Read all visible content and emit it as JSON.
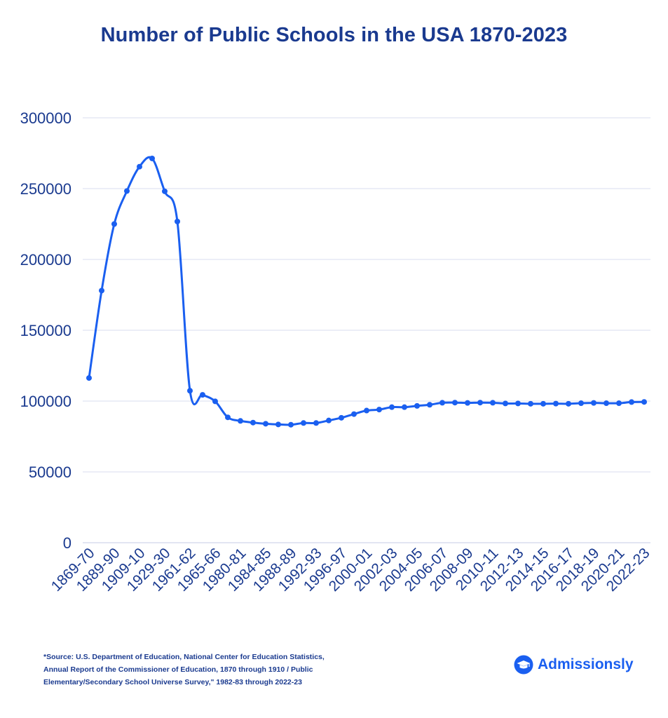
{
  "title": "Number of Public Schools in the USA 1870-2023",
  "source_lines": [
    "*Source:  U.S. Department of Education, National Center for Education Statistics,",
    "Annual Report of the Commissioner of Education, 1870 through 1910 / Public",
    "Elementary/Secondary School Universe Survey,\" 1982-83 through 2022-23"
  ],
  "brand": {
    "name": "Admissionsly",
    "icon": "graduation-cap-icon",
    "color": "#1a5ff0"
  },
  "colors": {
    "title": "#1a3a8f",
    "line": "#1a5ff0",
    "grid": "#d8dcef",
    "axis_text": "#1a3a8f"
  },
  "chart_data": {
    "type": "line",
    "title": "Number of Public Schools in the USA 1870-2023",
    "xlabel": "",
    "ylabel": "",
    "ylim": [
      0,
      300000
    ],
    "yticks": [
      0,
      50000,
      100000,
      150000,
      200000,
      250000,
      300000
    ],
    "grid": true,
    "legend": "none",
    "x_tick_labels": [
      "1869-70",
      "1889-90",
      "1909-10",
      "1929-30",
      "1961-62",
      "1965-66",
      "1980-81",
      "1984-85",
      "1988-89",
      "1992-93",
      "1996-97",
      "2000-01",
      "2002-03",
      "2004-05",
      "2006-07",
      "2008-09",
      "2010-11",
      "2012-13",
      "2014-15",
      "2016-17",
      "2018-19",
      "2020-21",
      "2022-23"
    ],
    "values": [
      116300,
      178000,
      225000,
      248300,
      265500,
      271300,
      248100,
      226800,
      107300,
      104400,
      99800,
      88500,
      86000,
      84800,
      84000,
      83500,
      83300,
      84500,
      84500,
      86300,
      88200,
      90800,
      93300,
      94000,
      95700,
      95700,
      96600,
      97400,
      98800,
      98900,
      98700,
      98900,
      98800,
      98300,
      98300,
      98100,
      98100,
      98200,
      98100,
      98500,
      98700,
      98500,
      98500,
      99300,
      99400
    ]
  }
}
